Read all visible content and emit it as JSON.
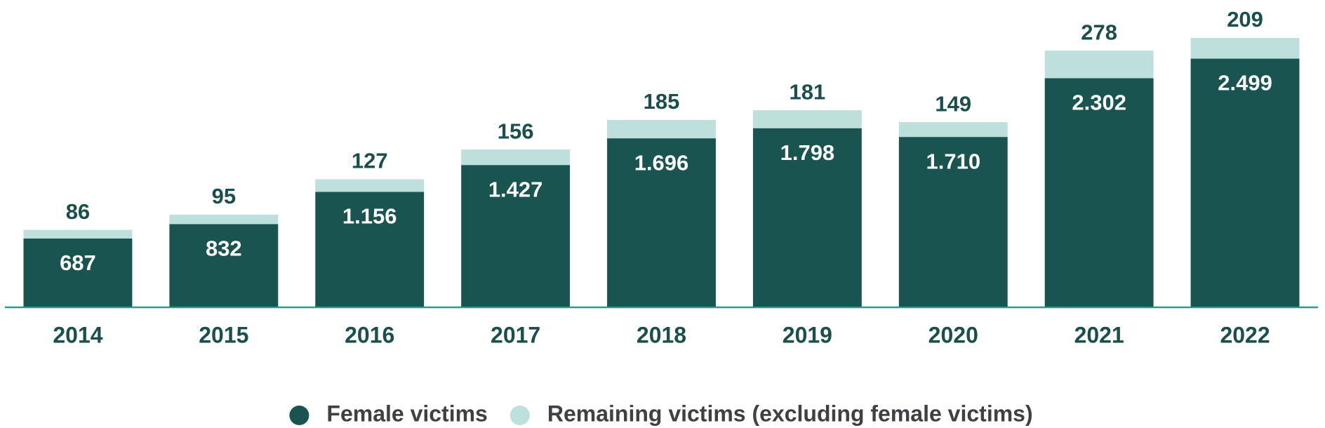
{
  "chart_data": {
    "type": "stacked_bar",
    "categories": [
      "2014",
      "2015",
      "2016",
      "2017",
      "2018",
      "2019",
      "2020",
      "2021",
      "2022"
    ],
    "series": [
      {
        "name": "Female victims",
        "color": "#1a5450",
        "values": [
          687,
          832,
          1156,
          1427,
          1696,
          1798,
          1710,
          2302,
          2499
        ],
        "value_labels": [
          "687",
          "832",
          "1.156",
          "1.427",
          "1.696",
          "1.798",
          "1.710",
          "2.302",
          "2.499"
        ]
      },
      {
        "name": "Remaining victims (excluding female victims)",
        "color": "#bde0dd",
        "values": [
          86,
          95,
          127,
          156,
          185,
          181,
          149,
          278,
          209
        ]
      }
    ]
  }
}
